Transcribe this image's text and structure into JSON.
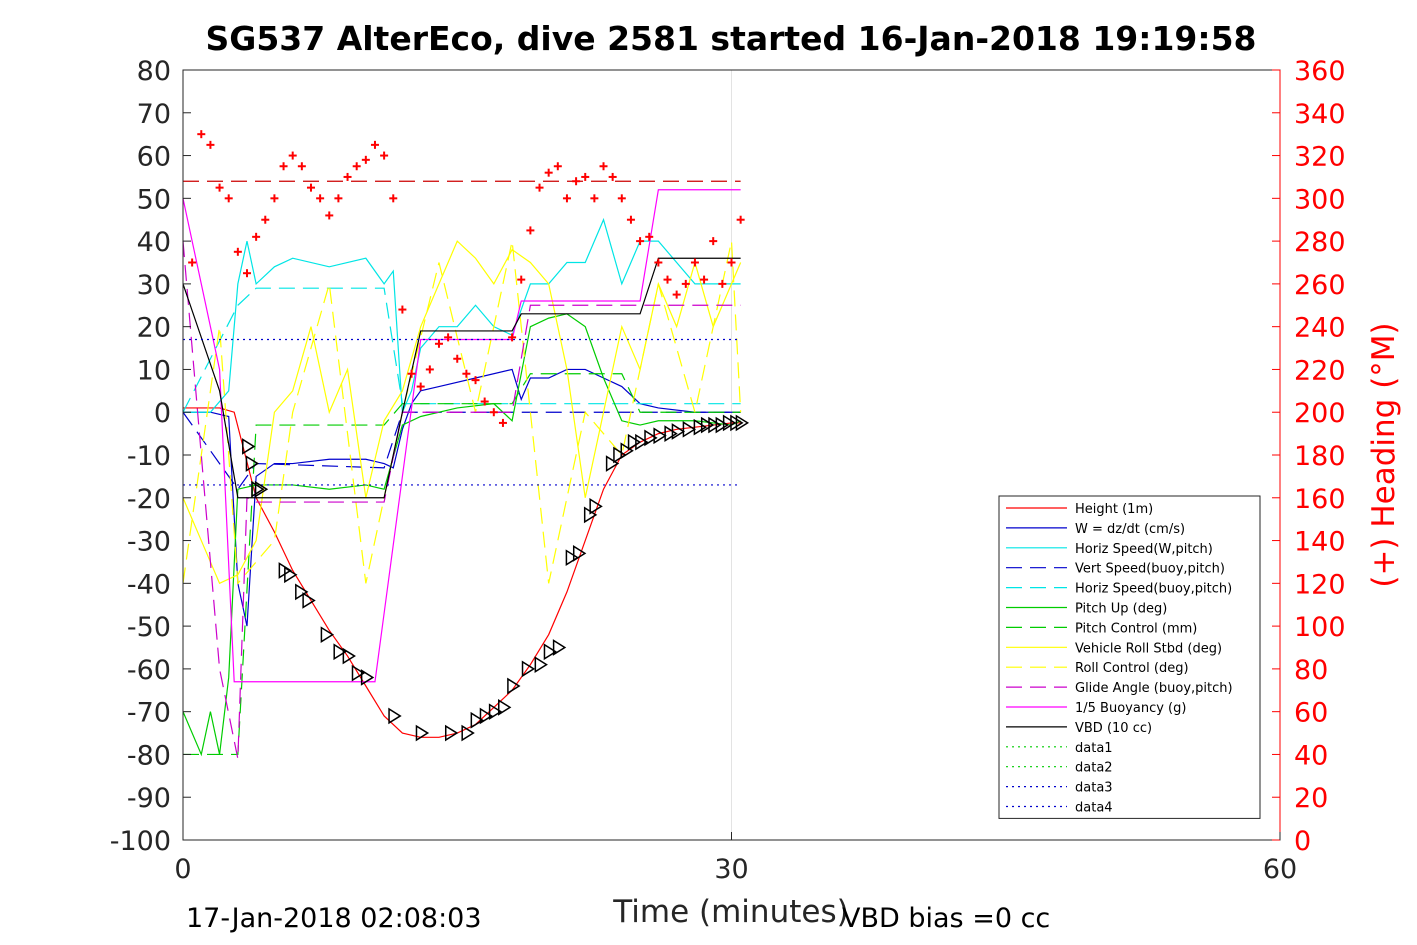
{
  "chart_data": {
    "type": "line",
    "title": "SG537 AlterEco, dive 2581 started 16-Jan-2018 19:19:58",
    "xlabel": "Time (minutes)",
    "ylabel": "",
    "y2label": "(+) Heading (°M)",
    "xlim": [
      0,
      60
    ],
    "ylim": [
      -100,
      80
    ],
    "y2lim": [
      0,
      360
    ],
    "x_ticks": [
      0,
      30,
      60
    ],
    "y_ticks": [
      80,
      70,
      60,
      50,
      40,
      30,
      20,
      10,
      0,
      -10,
      -20,
      -30,
      -40,
      -50,
      -60,
      -70,
      -80,
      -90,
      -100
    ],
    "y2_ticks": [
      360,
      340,
      320,
      300,
      280,
      260,
      240,
      220,
      200,
      180,
      160,
      140,
      120,
      100,
      80,
      60,
      40,
      20,
      0
    ],
    "grid": "x-only",
    "legend_position": "lower-right",
    "footer_left": "17-Jan-2018 02:08:03",
    "footer_right": "VBD bias =0 cc",
    "series": [
      {
        "name": "Height (1m)",
        "color": "#ff0000",
        "style": "solid",
        "x": [
          0,
          1,
          2,
          2.8,
          3.4,
          4,
          5,
          6,
          7,
          8,
          9,
          10,
          11,
          12,
          13,
          14,
          15,
          16,
          17,
          18,
          19,
          20,
          21,
          22,
          23,
          24,
          25,
          26,
          27,
          28,
          29,
          30,
          30.5
        ],
        "y": [
          1,
          1,
          1,
          0,
          -10,
          -20,
          -28,
          -37,
          -44,
          -51,
          -57,
          -64,
          -71,
          -75,
          -76,
          -76,
          -75,
          -73,
          -69,
          -65,
          -59,
          -52,
          -42,
          -30,
          -18,
          -10,
          -7,
          -5,
          -4,
          -3.5,
          -3,
          -2.5,
          -2.5
        ]
      },
      {
        "name": "W = dz/dt (cm/s)",
        "color": "#0000cd",
        "style": "solid",
        "x": [
          0,
          1.5,
          2.5,
          3,
          3.5,
          4,
          5,
          6,
          8,
          10,
          11,
          11.5,
          12,
          12.5,
          13,
          14,
          16,
          18,
          18.5,
          19,
          20,
          21,
          22,
          23,
          24,
          25,
          26,
          28,
          30,
          30.5
        ],
        "y": [
          0,
          0,
          -1,
          -40,
          -50,
          -15,
          -12,
          -12,
          -11,
          -11,
          -12,
          -13,
          -4,
          2,
          5,
          6,
          8,
          10,
          3,
          8,
          8,
          10,
          10,
          8,
          6,
          2,
          1,
          0,
          0,
          0
        ]
      },
      {
        "name": "Horiz Speed(W,pitch)",
        "color": "#00e5e5",
        "style": "solid",
        "x": [
          0,
          1.5,
          2.5,
          3,
          3.5,
          4,
          5,
          6,
          8,
          10,
          11,
          11.5,
          12,
          12.5,
          13,
          14,
          15,
          16,
          17,
          18,
          19,
          20,
          21,
          22,
          23,
          24,
          25,
          26,
          28,
          30,
          30.5
        ],
        "y": [
          0,
          0,
          5,
          30,
          40,
          30,
          34,
          36,
          34,
          36,
          30,
          33,
          0,
          5,
          15,
          20,
          20,
          25,
          20,
          18,
          30,
          30,
          35,
          35,
          45,
          30,
          40,
          40,
          30,
          30,
          30
        ]
      },
      {
        "name": "Vert Speed(buoy,pitch)",
        "color": "#0000cd",
        "style": "dashed",
        "x": [
          0,
          3,
          4,
          11,
          12,
          30.5
        ],
        "y": [
          0,
          -18,
          -12,
          -13,
          0,
          0
        ]
      },
      {
        "name": "Horiz Speed(buoy,pitch)",
        "color": "#00e5e5",
        "style": "dashed",
        "x": [
          0,
          3,
          4,
          11,
          12,
          30.5
        ],
        "y": [
          0,
          25,
          29,
          29,
          2,
          2
        ]
      },
      {
        "name": "Pitch Up (deg)",
        "color": "#00cc00",
        "style": "solid",
        "x": [
          0,
          1,
          1.5,
          2,
          2.5,
          3,
          4,
          6,
          8,
          10,
          11,
          12,
          13,
          15,
          17,
          18,
          19,
          20,
          21,
          22,
          23,
          24,
          25,
          26,
          28,
          30,
          30.5
        ],
        "y": [
          -70,
          -80,
          -70,
          -80,
          -62,
          -18,
          -17,
          -17,
          -18,
          -17,
          -18,
          -3,
          -1,
          1,
          2,
          -2,
          20,
          22,
          23,
          20,
          8,
          -2,
          -3,
          -2,
          -2,
          -3,
          -2
        ]
      },
      {
        "name": "Pitch Control (mm)",
        "color": "#00cc00",
        "style": "dashed",
        "x": [
          0,
          3,
          4,
          11,
          12,
          18,
          19,
          24,
          25,
          30.5
        ],
        "y": [
          -80,
          -80,
          -3,
          -3,
          2,
          2,
          9,
          9,
          0,
          0
        ]
      },
      {
        "name": "Vehicle Roll Stbd (deg)",
        "color": "#ffff00",
        "style": "solid",
        "x": [
          0,
          1,
          2,
          3,
          4,
          5,
          6,
          7,
          8,
          9,
          10,
          11,
          12,
          13,
          14,
          15,
          16,
          17,
          18,
          19,
          20,
          21,
          22,
          23,
          24,
          25,
          26,
          27,
          28,
          29,
          30,
          30.5
        ],
        "y": [
          -20,
          -30,
          -40,
          -38,
          -30,
          0,
          5,
          20,
          0,
          10,
          -20,
          -2,
          5,
          20,
          30,
          40,
          36,
          30,
          38,
          35,
          30,
          10,
          -20,
          0,
          20,
          10,
          30,
          20,
          35,
          20,
          30,
          35
        ]
      },
      {
        "name": "Roll Control (deg)",
        "color": "#ffff00",
        "style": "dashed",
        "x": [
          0,
          2,
          3,
          5,
          6,
          8,
          10,
          12,
          14,
          16,
          18,
          20,
          22,
          24,
          26,
          28,
          30,
          30.5
        ],
        "y": [
          -40,
          20,
          -40,
          -30,
          0,
          30,
          -40,
          0,
          35,
          0,
          40,
          -40,
          0,
          -10,
          30,
          0,
          40,
          0
        ]
      },
      {
        "name": "Glide Angle (buoy,pitch)",
        "color": "#cc00cc",
        "style": "dashed",
        "x": [
          0,
          1,
          2,
          3,
          3.5,
          4,
          11,
          12,
          18,
          19,
          30.5
        ],
        "y": [
          40,
          -10,
          -60,
          -81,
          -20,
          -21,
          -21,
          0,
          0,
          25,
          25
        ]
      },
      {
        "name": "1/5 Buoyancy (g)",
        "color": "#ff00ff",
        "style": "solid",
        "x": [
          0,
          2,
          2.8,
          9,
          10.5,
          13,
          18,
          18.5,
          25,
          26,
          30.5
        ],
        "y": [
          50,
          10,
          -63,
          -63,
          -63,
          17,
          17,
          26,
          26,
          52,
          52
        ]
      },
      {
        "name": "VBD (10 cc)",
        "color": "#000000",
        "style": "solid",
        "x": [
          0,
          2,
          3,
          11,
          12,
          13,
          18,
          18.5,
          25,
          26,
          30.5
        ],
        "y": [
          30,
          5,
          -20,
          -20,
          0,
          19,
          19,
          23,
          23,
          36,
          36
        ]
      },
      {
        "name": "data1",
        "color": "#00cc00",
        "style": "dotted",
        "x": [],
        "y": []
      },
      {
        "name": "data2",
        "color": "#00cc00",
        "style": "dotted",
        "x": [],
        "y": []
      },
      {
        "name": "data3",
        "color": "#0000cd",
        "style": "dotted",
        "x": [
          0,
          30.5
        ],
        "y": [
          17,
          17
        ]
      },
      {
        "name": "data4",
        "color": "#0000cd",
        "style": "dotted",
        "x": [
          0,
          30.5
        ],
        "y": [
          -17,
          -17
        ]
      }
    ],
    "reference_line": {
      "color": "#cc0000",
      "style": "dashed",
      "y": 54,
      "x": [
        0,
        30.5
      ]
    },
    "heading_points": {
      "color": "#ff0000",
      "marker": "plus",
      "axis": "right",
      "x": [
        0.5,
        1,
        1.5,
        2,
        2.5,
        3,
        3.5,
        4,
        4.5,
        5,
        5.5,
        6,
        6.5,
        7,
        7.5,
        8,
        8.5,
        9,
        9.5,
        10,
        10.5,
        11,
        11.5,
        12,
        12.5,
        13,
        13.5,
        14,
        14.5,
        15,
        15.5,
        16,
        16.5,
        17,
        17.5,
        18,
        18.5,
        19,
        19.5,
        20,
        20.5,
        21,
        21.5,
        22,
        22.5,
        23,
        23.5,
        24,
        24.5,
        25,
        25.5,
        26,
        26.5,
        27,
        27.5,
        28,
        28.5,
        29,
        29.5,
        30,
        30.5
      ],
      "y": [
        270,
        330,
        325,
        305,
        300,
        275,
        265,
        282,
        290,
        300,
        315,
        320,
        315,
        305,
        300,
        292,
        300,
        310,
        315,
        318,
        325,
        320,
        300,
        248,
        218,
        212,
        220,
        232,
        235,
        225,
        218,
        215,
        205,
        200,
        195,
        235,
        262,
        285,
        305,
        312,
        315,
        300,
        308,
        310,
        300,
        315,
        310,
        300,
        290,
        280,
        282,
        270,
        262,
        255,
        260,
        270,
        262,
        280,
        260,
        270,
        290
      ]
    },
    "trajectory_markers": {
      "color": "#000000",
      "marker": "triangle",
      "x": [
        3.5,
        3.7,
        4,
        4.2,
        5.5,
        5.8,
        6.4,
        6.8,
        7.8,
        8.5,
        9,
        9.5,
        10,
        11.5,
        13,
        14.6,
        15.5,
        16,
        16.5,
        17,
        17.5,
        18,
        18.8,
        19.5,
        20,
        20.5,
        21.2,
        21.6,
        22.2,
        22.5,
        23.4,
        23.8,
        24.2,
        24.6,
        25,
        25.5,
        26,
        26.6,
        27,
        27.6,
        28.2,
        28.6,
        29,
        29.4,
        29.8,
        30.2,
        30.5
      ],
      "y": [
        -8,
        -12,
        -18,
        -18,
        -37,
        -38,
        -42,
        -44,
        -52,
        -56,
        -57,
        -61,
        -62,
        -71,
        -75,
        -75,
        -75,
        -72,
        -71,
        -70,
        -69,
        -64,
        -60,
        -59,
        -56,
        -55,
        -34,
        -33,
        -24,
        -22,
        -12,
        -10,
        -9,
        -7,
        -7,
        -6,
        -5.5,
        -5,
        -4.5,
        -4,
        -3.5,
        -3,
        -3,
        -3,
        -2.5,
        -2.5,
        -2.5
      ]
    }
  }
}
